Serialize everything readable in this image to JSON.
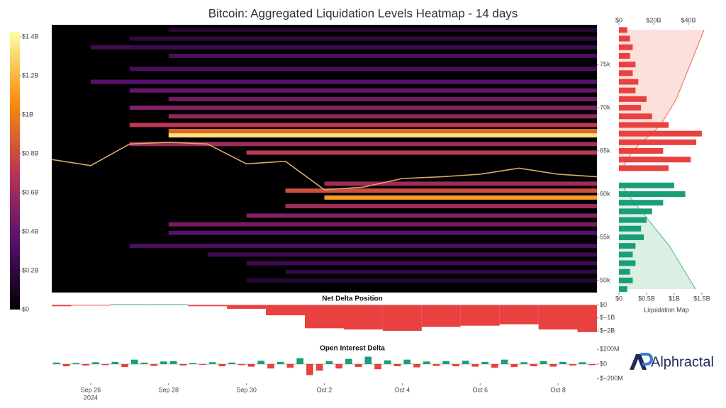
{
  "chart_data": [
    {
      "type": "heatmap",
      "title": "Bitcoin: Aggregated Liquidation Levels Heatmap - 14 days",
      "xlim": [
        "2024-09-25",
        "2024-10-09"
      ],
      "xticks": [
        {
          "value": "2024-09-26",
          "label": "Sep 26"
        },
        {
          "value": "2024-09-28",
          "label": "Sep 28"
        },
        {
          "value": "2024-09-30",
          "label": "Sep 30"
        },
        {
          "value": "2024-10-02",
          "label": "Oct 2"
        },
        {
          "value": "2024-10-04",
          "label": "Oct 4"
        },
        {
          "value": "2024-10-06",
          "label": "Oct 6"
        },
        {
          "value": "2024-10-08",
          "label": "Oct 8"
        }
      ],
      "x_year_label": "2024",
      "ylim": [
        48600,
        79600
      ],
      "yticks": [
        {
          "value": 50000,
          "label": "50k"
        },
        {
          "value": 55000,
          "label": "55k"
        },
        {
          "value": 60000,
          "label": "60k"
        },
        {
          "value": 65000,
          "label": "65k"
        },
        {
          "value": 70000,
          "label": "70k"
        },
        {
          "value": 75000,
          "label": "75k"
        }
      ],
      "colorscale": [
        "#000004",
        "#57106e",
        "#bc3754",
        "#f98e09",
        "#fcffa4"
      ],
      "clim": [
        0,
        1400000000.0
      ],
      "cticks": [
        {
          "value": 0,
          "label": "$0"
        },
        {
          "value": 200000000.0,
          "label": "$0.2B"
        },
        {
          "value": 400000000.0,
          "label": "$0.4B"
        },
        {
          "value": 600000000.0,
          "label": "$0.6B"
        },
        {
          "value": 800000000.0,
          "label": "$0.8B"
        },
        {
          "value": 1000000000.0,
          "label": "$1B"
        },
        {
          "value": 1200000000.0,
          "label": "$1.2B"
        },
        {
          "value": 1400000000.0,
          "label": "$1.4B"
        }
      ],
      "bands": {
        "prices": [
          79000,
          78000,
          77000,
          76000,
          74500,
          73000,
          72000,
          71000,
          70000,
          69000,
          68000,
          67300,
          66800,
          65800,
          64800,
          61200,
          60400,
          59600,
          58600,
          57500,
          56500,
          55500,
          54000,
          53000,
          52000,
          51000,
          50000
        ],
        "values": [
          150000000.0,
          200000000.0,
          250000000.0,
          300000000.0,
          300000000.0,
          350000000.0,
          400000000.0,
          450000000.0,
          500000000.0,
          550000000.0,
          700000000.0,
          900000000.0,
          1300000000.0,
          600000000.0,
          700000000.0,
          600000000.0,
          800000000.0,
          1100000000.0,
          600000000.0,
          500000000.0,
          450000000.0,
          350000000.0,
          300000000.0,
          250000000.0,
          250000000.0,
          200000000.0,
          150000000.0
        ],
        "start": [
          "2024-09-28",
          "2024-09-27",
          "2024-09-26",
          "2024-09-28",
          "2024-09-27",
          "2024-09-26",
          "2024-09-27",
          "2024-09-28",
          "2024-09-27",
          "2024-09-28",
          "2024-09-27",
          "2024-09-28",
          "2024-09-28",
          "2024-09-27",
          "2024-09-30",
          "2024-10-02",
          "2024-10-01",
          "2024-10-02",
          "2024-10-01",
          "2024-09-30",
          "2024-09-28",
          "2024-09-28",
          "2024-09-27",
          "2024-09-29",
          "2024-09-30",
          "2024-10-01",
          "2024-09-30"
        ]
      },
      "line": {
        "color": "#d8a868",
        "x": [
          "2024-09-25",
          "2024-09-26",
          "2024-09-27",
          "2024-09-28",
          "2024-09-29",
          "2024-09-30",
          "2024-10-01",
          "2024-10-02",
          "2024-10-03",
          "2024-10-04",
          "2024-10-05",
          "2024-10-06",
          "2024-10-07",
          "2024-10-08",
          "2024-10-09"
        ],
        "values": [
          64000,
          63300,
          65800,
          66000,
          65800,
          63500,
          63800,
          60500,
          60800,
          61800,
          62000,
          62300,
          63000,
          62300,
          62000
        ]
      }
    },
    {
      "type": "liquidation-map",
      "xlabel": "Liquidation Map",
      "y": [
        49000,
        50000,
        51000,
        52000,
        53000,
        54000,
        55000,
        56000,
        57000,
        58000,
        59000,
        60000,
        61000,
        62000,
        63000,
        64000,
        65000,
        66000,
        67000,
        68000,
        69000,
        70000,
        71000,
        72000,
        73000,
        74000,
        75000,
        76000,
        77000,
        78000,
        79000
      ],
      "ylim": [
        48600,
        79600
      ],
      "xlim": [
        0,
        1630000000.0
      ],
      "xticks": [
        {
          "value": 0,
          "label": "$0"
        },
        {
          "value": 500000000.0,
          "label": "$0.5B"
        },
        {
          "value": 1000000000.0,
          "label": "$1B"
        },
        {
          "value": 1500000000.0,
          "label": "$1.5B"
        }
      ],
      "x2lim": [
        0,
        51800000000.0
      ],
      "x2ticks": [
        {
          "value": 0,
          "label": "$0"
        },
        {
          "value": 20000000000.0,
          "label": "$20B"
        },
        {
          "value": 40000000000.0,
          "label": "$40B"
        }
      ],
      "series": [
        {
          "color": "#1a9e77",
          "values": [
            150000000.0,
            250000000.0,
            200000000.0,
            300000000.0,
            250000000.0,
            300000000.0,
            450000000.0,
            400000000.0,
            500000000.0,
            600000000.0,
            800000000.0,
            1200000000.0,
            1000000000.0,
            null,
            null,
            null,
            null,
            null,
            null,
            null,
            null,
            null,
            null,
            null,
            null,
            null,
            null,
            null,
            null,
            null,
            null
          ]
        },
        {
          "color": "#e8413f",
          "values": [
            null,
            null,
            null,
            null,
            null,
            null,
            null,
            null,
            null,
            null,
            null,
            null,
            null,
            null,
            900000000.0,
            1300000000.0,
            800000000.0,
            1400000000.0,
            1500000000.0,
            900000000.0,
            600000000.0,
            400000000.0,
            500000000.0,
            300000000.0,
            350000000.0,
            250000000.0,
            300000000.0,
            200000000.0,
            250000000.0,
            200000000.0,
            150000000.0
          ]
        }
      ],
      "cumulative": [
        {
          "axis": "x2",
          "color": "#4cbb7f",
          "fill": "#d9f0e3",
          "values": [
            44000000000.0,
            41000000000.0,
            38000000000.0,
            35000000000.0,
            32000000000.0,
            29000000000.0,
            25000000000.0,
            21000000000.0,
            17000000000.0,
            13000000000.0,
            9000000000.0,
            5000000000.0,
            2000000000.0,
            null,
            null,
            null,
            null,
            null,
            null,
            null,
            null,
            null,
            null,
            null,
            null,
            null,
            null,
            null,
            null,
            null,
            null
          ]
        },
        {
          "axis": "x2",
          "color": "#e86a50",
          "fill": "#fbe0dc",
          "values": [
            null,
            null,
            null,
            null,
            null,
            null,
            null,
            null,
            null,
            null,
            null,
            null,
            null,
            null,
            2000000000.0,
            5000000000.0,
            8000000000.0,
            13000000000.0,
            19000000000.0,
            24000000000.0,
            27000000000.0,
            30000000000.0,
            33000000000.0,
            35000000000.0,
            37000000000.0,
            39000000000.0,
            41000000000.0,
            43000000000.0,
            45000000000.0,
            47000000000.0,
            49000000000.0
          ]
        }
      ]
    },
    {
      "type": "area",
      "title": "Net Delta Position",
      "x": [
        "2024-09-25",
        "2024-09-26",
        "2024-09-27",
        "2024-09-28",
        "2024-09-29",
        "2024-09-30",
        "2024-10-01",
        "2024-10-02",
        "2024-10-03",
        "2024-10-04",
        "2024-10-05",
        "2024-10-06",
        "2024-10-07",
        "2024-10-08",
        "2024-10-09"
      ],
      "values": [
        -100000000.0,
        -50000000.0,
        50000000.0,
        50000000.0,
        -100000000.0,
        -300000000.0,
        -800000000.0,
        -1800000000.0,
        -1900000000.0,
        -2000000000.0,
        -1700000000.0,
        -1600000000.0,
        -1500000000.0,
        -1900000000.0,
        -2100000000.0
      ],
      "ylim": [
        -2600000000.0,
        300000000.0
      ],
      "yticks": [
        {
          "value": 0,
          "label": "$0"
        },
        {
          "value": -1000000000.0,
          "label": "$−1B"
        },
        {
          "value": -2000000000.0,
          "label": "$−2B"
        }
      ],
      "positive_color": "#1a9e77",
      "negative_color": "#e8413f"
    },
    {
      "type": "bar",
      "title": "Open Interest Delta",
      "categories": [
        null,
        null,
        null,
        null,
        null,
        null,
        null,
        null,
        null,
        null,
        null,
        null,
        null,
        null,
        null,
        null,
        null,
        null,
        null,
        null,
        null,
        null,
        null,
        null,
        null,
        null,
        null,
        null,
        null,
        null,
        null,
        null,
        null,
        null,
        null,
        null,
        null,
        null,
        null,
        null,
        null,
        null,
        null,
        null,
        null,
        null,
        null,
        null,
        null,
        null,
        null,
        null,
        null,
        null,
        null,
        null
      ],
      "values": [
        20000000.0,
        -30000000.0,
        15000000.0,
        -20000000.0,
        25000000.0,
        -15000000.0,
        30000000.0,
        -40000000.0,
        60000000.0,
        20000000.0,
        -25000000.0,
        35000000.0,
        40000000.0,
        -20000000.0,
        15000000.0,
        -10000000.0,
        25000000.0,
        -30000000.0,
        20000000.0,
        -15000000.0,
        -35000000.0,
        45000000.0,
        -60000000.0,
        30000000.0,
        -50000000.0,
        80000000.0,
        -150000000.0,
        -90000000.0,
        40000000.0,
        -60000000.0,
        70000000.0,
        -40000000.0,
        100000000.0,
        -70000000.0,
        50000000.0,
        -30000000.0,
        60000000.0,
        -45000000.0,
        35000000.0,
        -25000000.0,
        40000000.0,
        -30000000.0,
        45000000.0,
        -35000000.0,
        30000000.0,
        -50000000.0,
        60000000.0,
        -40000000.0,
        25000000.0,
        -30000000.0,
        40000000.0,
        -35000000.0,
        30000000.0,
        -20000000.0,
        25000000.0,
        -15000000.0
      ],
      "ylim": [
        -250000000.0,
        230000000.0
      ],
      "yticks": [
        {
          "value": 200000000.0,
          "label": "$200M"
        },
        {
          "value": 0,
          "label": "$0"
        },
        {
          "value": -200000000.0,
          "label": "$−200M"
        }
      ],
      "positive_color": "#1a9e77",
      "negative_color": "#e8413f"
    }
  ],
  "brand": {
    "name": "Alphractal"
  }
}
